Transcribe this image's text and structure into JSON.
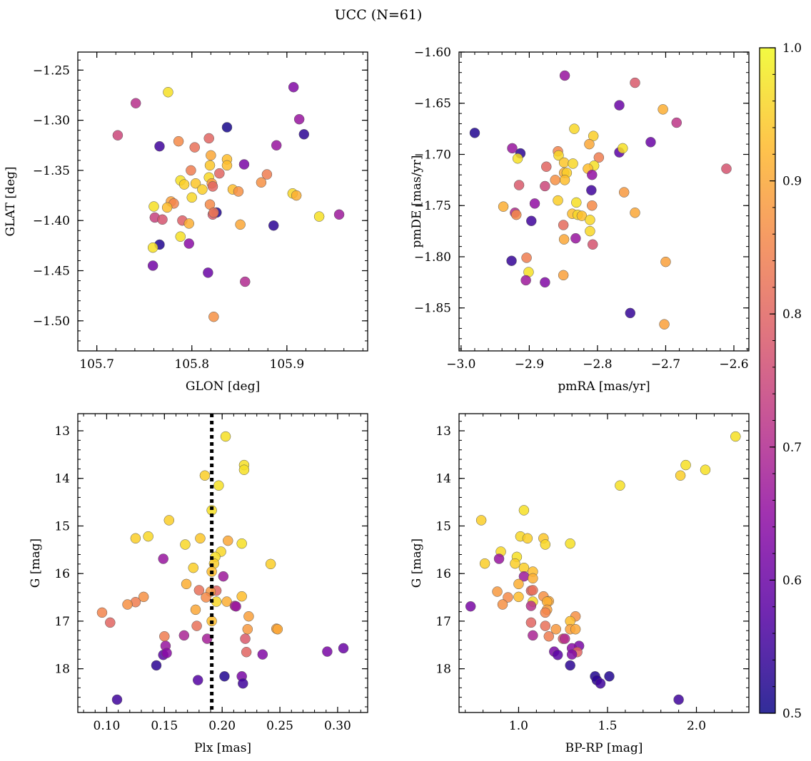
{
  "figure_title": "UCC (N=61)",
  "colorbar": {
    "colormap": "plasma",
    "range": [
      0.5,
      1.0
    ],
    "ticks": [
      0.5,
      0.6,
      0.7,
      0.8,
      0.9,
      1.0
    ],
    "tick_labels": [
      "0.5",
      "0.6",
      "0.7",
      "0.8",
      "0.9",
      "1.0"
    ]
  },
  "chart_data": [
    {
      "type": "scatter",
      "xlabel": "GLON [deg]",
      "ylabel": "GLAT [deg]",
      "xlim": [
        105.68,
        105.985
      ],
      "ylim": [
        -1.53,
        -1.232
      ],
      "y_inverted": false,
      "xticks": [
        105.7,
        105.8,
        105.9
      ],
      "xtick_labels": [
        "105.7",
        "105.8",
        "105.9"
      ],
      "yticks": [
        -1.25,
        -1.3,
        -1.35,
        -1.4,
        -1.45,
        -1.5
      ],
      "ytick_labels": [
        "−1.25",
        "−1.30",
        "−1.35",
        "−1.40",
        "−1.45",
        "−1.50"
      ],
      "points": [
        [
          105.775,
          -1.272,
          0.97
        ],
        [
          105.741,
          -1.283,
          0.71
        ],
        [
          105.907,
          -1.267,
          0.63
        ],
        [
          105.722,
          -1.315,
          0.75
        ],
        [
          105.766,
          -1.326,
          0.55
        ],
        [
          105.837,
          -1.307,
          0.51
        ],
        [
          105.913,
          -1.299,
          0.66
        ],
        [
          105.918,
          -1.314,
          0.53
        ],
        [
          105.786,
          -1.321,
          0.86
        ],
        [
          105.818,
          -1.318,
          0.8
        ],
        [
          105.803,
          -1.327,
          0.82
        ],
        [
          105.889,
          -1.325,
          0.66
        ],
        [
          105.82,
          -1.335,
          0.9
        ],
        [
          105.837,
          -1.339,
          0.93
        ],
        [
          105.819,
          -1.345,
          0.94
        ],
        [
          105.837,
          -1.345,
          0.93
        ],
        [
          105.829,
          -1.353,
          0.8
        ],
        [
          105.855,
          -1.344,
          0.62
        ],
        [
          105.799,
          -1.35,
          0.84
        ],
        [
          105.788,
          -1.36,
          0.97
        ],
        [
          105.818,
          -1.357,
          0.96
        ],
        [
          105.792,
          -1.364,
          0.95
        ],
        [
          105.804,
          -1.363,
          0.94
        ],
        [
          105.821,
          -1.363,
          0.88
        ],
        [
          105.822,
          -1.366,
          0.8
        ],
        [
          105.843,
          -1.369,
          0.93
        ],
        [
          105.811,
          -1.369,
          0.95
        ],
        [
          105.849,
          -1.371,
          0.87
        ],
        [
          105.873,
          -1.362,
          0.87
        ],
        [
          105.879,
          -1.354,
          0.84
        ],
        [
          105.8,
          -1.377,
          0.96
        ],
        [
          105.906,
          -1.373,
          0.96
        ],
        [
          105.91,
          -1.375,
          0.91
        ],
        [
          105.778,
          -1.381,
          0.89
        ],
        [
          105.781,
          -1.383,
          0.85
        ],
        [
          105.76,
          -1.386,
          0.97
        ],
        [
          105.774,
          -1.387,
          0.93
        ],
        [
          105.819,
          -1.384,
          0.86
        ],
        [
          105.826,
          -1.392,
          0.52
        ],
        [
          105.822,
          -1.394,
          0.78
        ],
        [
          105.823,
          -1.392,
          0.83
        ],
        [
          105.761,
          -1.397,
          0.74
        ],
        [
          105.769,
          -1.399,
          0.77
        ],
        [
          105.79,
          -1.4,
          0.79
        ],
        [
          105.797,
          -1.403,
          0.91
        ],
        [
          105.851,
          -1.404,
          0.9
        ],
        [
          105.886,
          -1.405,
          0.53
        ],
        [
          105.934,
          -1.396,
          0.97
        ],
        [
          105.955,
          -1.394,
          0.67
        ],
        [
          105.788,
          -1.416,
          0.97
        ],
        [
          105.766,
          -1.424,
          0.52
        ],
        [
          105.759,
          -1.427,
          0.97
        ],
        [
          105.797,
          -1.423,
          0.64
        ],
        [
          105.759,
          -1.445,
          0.61
        ],
        [
          105.817,
          -1.452,
          0.6
        ],
        [
          105.856,
          -1.461,
          0.7
        ],
        [
          105.823,
          -1.496,
          0.87
        ]
      ]
    },
    {
      "type": "scatter",
      "xlabel": "pmRA [mas/yr]",
      "ylabel": "pmDE [mas/yr]",
      "xlim": [
        -3.003,
        -2.578
      ],
      "ylim": [
        -1.892,
        -1.6
      ],
      "y_inverted": false,
      "xticks": [
        -3.0,
        -2.9,
        -2.8,
        -2.7,
        -2.6
      ],
      "xtick_labels": [
        "−3.0",
        "−2.9",
        "−2.8",
        "−2.7",
        "−2.6"
      ],
      "yticks": [
        -1.6,
        -1.65,
        -1.7,
        -1.75,
        -1.8,
        -1.85
      ],
      "ytick_labels": [
        "−1.60",
        "−1.65",
        "−1.70",
        "−1.75",
        "−1.80",
        "−1.85"
      ],
      "points": [
        [
          -2.848,
          -1.623,
          0.66
        ],
        [
          -2.745,
          -1.63,
          0.78
        ],
        [
          -2.768,
          -1.652,
          0.6
        ],
        [
          -2.704,
          -1.656,
          0.91
        ],
        [
          -2.684,
          -1.669,
          0.72
        ],
        [
          -2.98,
          -1.679,
          0.52
        ],
        [
          -2.834,
          -1.675,
          0.96
        ],
        [
          -2.806,
          -1.682,
          0.95
        ],
        [
          -2.925,
          -1.694,
          0.66
        ],
        [
          -2.913,
          -1.699,
          0.53
        ],
        [
          -2.858,
          -1.697,
          0.85
        ],
        [
          -2.768,
          -1.698,
          0.58
        ],
        [
          -2.763,
          -1.694,
          0.97
        ],
        [
          -2.722,
          -1.688,
          0.6
        ],
        [
          -2.812,
          -1.69,
          0.9
        ],
        [
          -2.798,
          -1.703,
          0.84
        ],
        [
          -2.917,
          -1.704,
          0.97
        ],
        [
          -2.857,
          -1.701,
          0.96
        ],
        [
          -2.849,
          -1.708,
          0.94
        ],
        [
          -2.836,
          -1.709,
          0.96
        ],
        [
          -2.805,
          -1.711,
          0.97
        ],
        [
          -2.814,
          -1.714,
          0.93
        ],
        [
          -2.875,
          -1.712,
          0.8
        ],
        [
          -2.849,
          -1.718,
          0.91
        ],
        [
          -2.845,
          -1.718,
          0.95
        ],
        [
          -2.808,
          -1.72,
          0.65
        ],
        [
          -2.611,
          -1.714,
          0.77
        ],
        [
          -2.848,
          -1.725,
          0.93
        ],
        [
          -2.862,
          -1.725,
          0.87
        ],
        [
          -2.915,
          -1.73,
          0.78
        ],
        [
          -2.877,
          -1.731,
          0.75
        ],
        [
          -2.809,
          -1.735,
          0.55
        ],
        [
          -2.761,
          -1.737,
          0.88
        ],
        [
          -2.858,
          -1.745,
          0.95
        ],
        [
          -2.831,
          -1.747,
          0.97
        ],
        [
          -2.808,
          -1.75,
          0.86
        ],
        [
          -2.938,
          -1.751,
          0.91
        ],
        [
          -2.892,
          -1.748,
          0.65
        ],
        [
          -2.921,
          -1.757,
          0.7
        ],
        [
          -2.919,
          -1.759,
          0.86
        ],
        [
          -2.837,
          -1.758,
          0.93
        ],
        [
          -2.829,
          -1.759,
          0.96
        ],
        [
          -2.823,
          -1.76,
          0.93
        ],
        [
          -2.745,
          -1.757,
          0.9
        ],
        [
          -2.897,
          -1.765,
          0.55
        ],
        [
          -2.811,
          -1.764,
          0.96
        ],
        [
          -2.85,
          -1.769,
          0.81
        ],
        [
          -2.811,
          -1.775,
          0.96
        ],
        [
          -2.849,
          -1.783,
          0.9
        ],
        [
          -2.832,
          -1.782,
          0.66
        ],
        [
          -2.807,
          -1.788,
          0.77
        ],
        [
          -2.926,
          -1.804,
          0.54
        ],
        [
          -2.904,
          -1.801,
          0.84
        ],
        [
          -2.7,
          -1.805,
          0.89
        ],
        [
          -2.901,
          -1.815,
          0.97
        ],
        [
          -2.905,
          -1.823,
          0.67
        ],
        [
          -2.877,
          -1.825,
          0.63
        ],
        [
          -2.85,
          -1.818,
          0.89
        ],
        [
          -2.752,
          -1.855,
          0.54
        ],
        [
          -2.702,
          -1.866,
          0.89
        ]
      ]
    },
    {
      "type": "scatter",
      "xlabel": "Plx [mas]",
      "ylabel": "G [mag]",
      "xlim": [
        0.075,
        0.326
      ],
      "ylim": [
        18.92,
        12.64
      ],
      "y_inverted": true,
      "xticks": [
        0.1,
        0.15,
        0.2,
        0.25,
        0.3
      ],
      "xtick_labels": [
        "0.10",
        "0.15",
        "0.20",
        "0.25",
        "0.30"
      ],
      "yticks": [
        13,
        14,
        15,
        16,
        17,
        18
      ],
      "ytick_labels": [
        "13",
        "14",
        "15",
        "16",
        "17",
        "18"
      ],
      "vline": {
        "x": 0.191,
        "style": "dotted",
        "color": "#000000"
      },
      "points": [
        [
          0.203,
          13.12,
          0.97
        ],
        [
          0.219,
          13.72,
          0.97
        ],
        [
          0.219,
          13.82,
          0.97
        ],
        [
          0.185,
          13.94,
          0.95
        ],
        [
          0.197,
          14.15,
          0.97
        ],
        [
          0.191,
          14.67,
          0.97
        ],
        [
          0.154,
          14.88,
          0.95
        ],
        [
          0.136,
          15.22,
          0.96
        ],
        [
          0.125,
          15.26,
          0.95
        ],
        [
          0.181,
          15.26,
          0.94
        ],
        [
          0.205,
          15.31,
          0.9
        ],
        [
          0.168,
          15.39,
          0.96
        ],
        [
          0.217,
          15.37,
          0.97
        ],
        [
          0.199,
          15.54,
          0.96
        ],
        [
          0.194,
          15.65,
          0.97
        ],
        [
          0.149,
          15.69,
          0.66
        ],
        [
          0.193,
          15.79,
          0.95
        ],
        [
          0.242,
          15.8,
          0.95
        ],
        [
          0.175,
          15.88,
          0.95
        ],
        [
          0.191,
          15.96,
          0.93
        ],
        [
          0.201,
          16.06,
          0.67
        ],
        [
          0.169,
          16.22,
          0.91
        ],
        [
          0.195,
          16.36,
          0.8
        ],
        [
          0.18,
          16.35,
          0.82
        ],
        [
          0.19,
          16.38,
          0.88
        ],
        [
          0.186,
          16.5,
          0.86
        ],
        [
          0.217,
          16.48,
          0.93
        ],
        [
          0.132,
          16.49,
          0.87
        ],
        [
          0.125,
          16.6,
          0.84
        ],
        [
          0.118,
          16.65,
          0.87
        ],
        [
          0.195,
          16.59,
          0.96
        ],
        [
          0.204,
          16.59,
          0.91
        ],
        [
          0.211,
          16.68,
          0.71
        ],
        [
          0.212,
          16.69,
          0.66
        ],
        [
          0.177,
          16.76,
          0.9
        ],
        [
          0.096,
          16.82,
          0.85
        ],
        [
          0.223,
          16.9,
          0.89
        ],
        [
          0.191,
          17.0,
          0.93
        ],
        [
          0.103,
          17.03,
          0.8
        ],
        [
          0.178,
          17.1,
          0.82
        ],
        [
          0.222,
          17.17,
          0.88
        ],
        [
          0.247,
          17.16,
          0.89
        ],
        [
          0.248,
          17.17,
          0.9
        ],
        [
          0.167,
          17.3,
          0.69
        ],
        [
          0.15,
          17.32,
          0.84
        ],
        [
          0.187,
          17.37,
          0.68
        ],
        [
          0.22,
          17.37,
          0.78
        ],
        [
          0.151,
          17.52,
          0.66
        ],
        [
          0.305,
          17.57,
          0.6
        ],
        [
          0.291,
          17.64,
          0.62
        ],
        [
          0.221,
          17.65,
          0.8
        ],
        [
          0.235,
          17.7,
          0.63
        ],
        [
          0.149,
          17.71,
          0.58
        ],
        [
          0.152,
          17.67,
          0.64
        ],
        [
          0.143,
          17.93,
          0.53
        ],
        [
          0.202,
          18.16,
          0.52
        ],
        [
          0.217,
          18.16,
          0.62
        ],
        [
          0.179,
          18.24,
          0.57
        ],
        [
          0.218,
          18.31,
          0.55
        ],
        [
          0.109,
          18.65,
          0.55
        ]
      ]
    },
    {
      "type": "scatter",
      "xlabel": "BP-RP [mag]",
      "ylabel": "G [mag]",
      "xlim": [
        0.665,
        2.295
      ],
      "ylim": [
        18.92,
        12.64
      ],
      "y_inverted": true,
      "xticks": [
        1.0,
        1.5,
        2.0
      ],
      "xtick_labels": [
        "1.0",
        "1.5",
        "2.0"
      ],
      "yticks": [
        13,
        14,
        15,
        16,
        17,
        18
      ],
      "ytick_labels": [
        "13",
        "14",
        "15",
        "16",
        "17",
        "18"
      ],
      "points": [
        [
          2.22,
          13.12,
          0.97
        ],
        [
          1.94,
          13.72,
          0.97
        ],
        [
          2.05,
          13.82,
          0.97
        ],
        [
          1.91,
          13.94,
          0.95
        ],
        [
          1.57,
          14.15,
          0.97
        ],
        [
          1.03,
          14.67,
          0.97
        ],
        [
          0.79,
          14.88,
          0.95
        ],
        [
          1.01,
          15.22,
          0.96
        ],
        [
          1.05,
          15.26,
          0.95
        ],
        [
          1.14,
          15.26,
          0.94
        ],
        [
          1.29,
          15.37,
          0.97
        ],
        [
          1.15,
          15.39,
          0.96
        ],
        [
          0.9,
          15.54,
          0.96
        ],
        [
          0.89,
          15.69,
          0.66
        ],
        [
          0.99,
          15.65,
          0.97
        ],
        [
          0.81,
          15.79,
          0.95
        ],
        [
          0.98,
          15.79,
          0.95
        ],
        [
          1.03,
          15.88,
          0.95
        ],
        [
          1.08,
          15.96,
          0.93
        ],
        [
          1.03,
          16.06,
          0.67
        ],
        [
          1.08,
          16.1,
          0.91
        ],
        [
          1.0,
          16.22,
          0.91
        ],
        [
          1.07,
          16.36,
          0.8
        ],
        [
          1.08,
          16.35,
          0.82
        ],
        [
          0.88,
          16.38,
          0.88
        ],
        [
          0.94,
          16.5,
          0.86
        ],
        [
          1.0,
          16.49,
          0.93
        ],
        [
          1.14,
          16.48,
          0.87
        ],
        [
          1.17,
          16.58,
          0.9
        ],
        [
          1.08,
          16.59,
          0.96
        ],
        [
          1.16,
          16.59,
          0.91
        ],
        [
          0.91,
          16.65,
          0.87
        ],
        [
          1.07,
          16.68,
          0.71
        ],
        [
          0.73,
          16.69,
          0.62
        ],
        [
          1.16,
          16.76,
          0.89
        ],
        [
          1.15,
          16.82,
          0.85
        ],
        [
          1.32,
          16.9,
          0.87
        ],
        [
          1.29,
          17.0,
          0.93
        ],
        [
          1.07,
          17.03,
          0.8
        ],
        [
          1.15,
          17.1,
          0.82
        ],
        [
          1.21,
          17.17,
          0.88
        ],
        [
          1.29,
          17.17,
          0.89
        ],
        [
          1.32,
          17.17,
          0.9
        ],
        [
          1.08,
          17.3,
          0.69
        ],
        [
          1.17,
          17.32,
          0.84
        ],
        [
          1.25,
          17.37,
          0.78
        ],
        [
          1.26,
          17.37,
          0.7
        ],
        [
          1.34,
          17.52,
          0.62
        ],
        [
          1.3,
          17.57,
          0.64
        ],
        [
          1.33,
          17.65,
          0.8
        ],
        [
          1.2,
          17.64,
          0.62
        ],
        [
          1.3,
          17.7,
          0.63
        ],
        [
          1.22,
          17.71,
          0.58
        ],
        [
          1.29,
          17.93,
          0.53
        ],
        [
          1.43,
          18.16,
          0.52
        ],
        [
          1.51,
          18.16,
          0.52
        ],
        [
          1.44,
          18.24,
          0.53
        ],
        [
          1.46,
          18.31,
          0.55
        ],
        [
          1.9,
          18.65,
          0.55
        ]
      ]
    }
  ]
}
